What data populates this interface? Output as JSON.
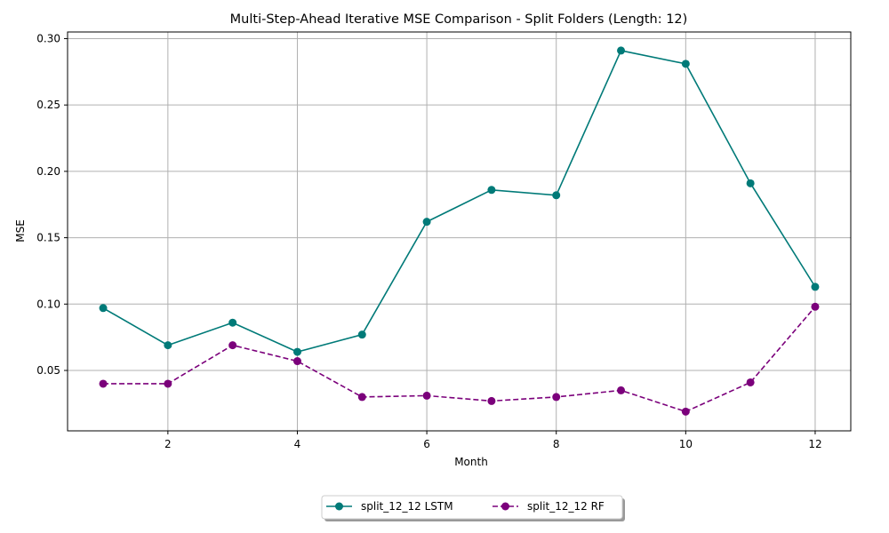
{
  "chart_data": {
    "type": "line",
    "title": "Multi-Step-Ahead Iterative MSE Comparison - Split Folders (Length: 12)",
    "xlabel": "Month",
    "ylabel": "MSE",
    "x": [
      1,
      2,
      3,
      4,
      5,
      6,
      7,
      8,
      9,
      10,
      11,
      12
    ],
    "xlim": [
      0.45,
      12.55
    ],
    "ylim": [
      0.0045,
      0.305
    ],
    "xticks": [
      2,
      4,
      6,
      8,
      10,
      12
    ],
    "yticks": [
      0.05,
      0.1,
      0.15,
      0.2,
      0.25,
      0.3
    ],
    "ytick_labels": [
      "0.05",
      "0.10",
      "0.15",
      "0.20",
      "0.25",
      "0.30"
    ],
    "grid": true,
    "legend_position": "bottom-center, outside",
    "series": [
      {
        "name": "split_12_12 LSTM",
        "color": "#007a78",
        "line_style": "solid",
        "marker": "circle",
        "values": [
          0.097,
          0.069,
          0.086,
          0.064,
          0.077,
          0.162,
          0.186,
          0.182,
          0.291,
          0.281,
          0.191,
          0.113
        ]
      },
      {
        "name": "split_12_12 RF",
        "color": "#7b007b",
        "line_style": "dashed",
        "marker": "circle",
        "values": [
          0.04,
          0.04,
          0.069,
          0.057,
          0.03,
          0.031,
          0.027,
          0.03,
          0.035,
          0.019,
          0.041,
          0.098
        ]
      }
    ]
  }
}
